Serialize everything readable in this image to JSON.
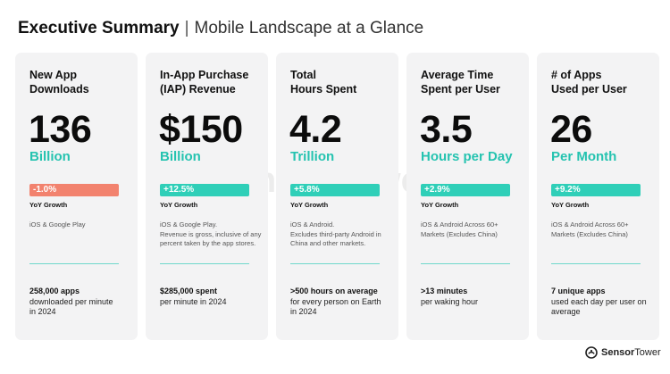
{
  "header": {
    "title_bold": "Executive Summary",
    "separator": "|",
    "title_light": "Mobile Landscape at a Glance"
  },
  "colors": {
    "accent_teal": "#25c3b0",
    "badge_up": "#2fcfb8",
    "badge_down": "#f2826e",
    "card_bg": "#f3f3f4"
  },
  "cards": [
    {
      "title_line1": "New App",
      "title_line2": "Downloads",
      "value": "136",
      "unit": "Billion",
      "growth": "-1.0%",
      "growth_direction": "down",
      "growth_label": "YoY Growth",
      "note_lines": [
        "iOS & Google Play"
      ],
      "footer_strong": "258,000 apps",
      "footer_rest": [
        "downloaded per minute",
        "in 2024"
      ]
    },
    {
      "title_line1": "In-App Purchase",
      "title_line2": "(IAP) Revenue",
      "value": "$150",
      "unit": "Billion",
      "growth": "+12.5%",
      "growth_direction": "up",
      "growth_label": "YoY Growth",
      "note_lines": [
        "iOS & Google Play.",
        "Revenue is gross, inclusive of any",
        "percent taken by the app stores."
      ],
      "footer_strong": "$285,000 spent",
      "footer_rest": [
        "per minute in 2024"
      ]
    },
    {
      "title_line1": "Total",
      "title_line2": "Hours Spent",
      "value": "4.2",
      "unit": "Trillion",
      "growth": "+5.8%",
      "growth_direction": "up",
      "growth_label": "YoY Growth",
      "note_lines": [
        "iOS & Android.",
        "Excludes third-party Android in",
        "China and other markets."
      ],
      "footer_strong": ">500 hours on average",
      "footer_rest": [
        "for every person on Earth",
        "in 2024"
      ]
    },
    {
      "title_line1": "Average Time",
      "title_line2": "Spent per User",
      "value": "3.5",
      "unit": "Hours per Day",
      "growth": "+2.9%",
      "growth_direction": "up",
      "growth_label": "YoY Growth",
      "note_lines": [
        "iOS & Android Across 60+",
        "Markets (Excludes China)"
      ],
      "footer_strong": ">13 minutes",
      "footer_rest": [
        "per waking hour"
      ]
    },
    {
      "title_line1": "# of Apps",
      "title_line2": "Used per User",
      "value": "26",
      "unit": "Per Month",
      "growth": "+9.2%",
      "growth_direction": "up",
      "growth_label": "YoY Growth",
      "note_lines": [
        "iOS & Android Across 60+",
        "Markets (Excludes China)"
      ],
      "footer_strong": "7 unique apps",
      "footer_rest": [
        "used each day per user on",
        "average"
      ]
    }
  ],
  "watermark": {
    "text": "SensorTower"
  },
  "brand": {
    "name_bold": "Sensor",
    "name_rest": "Tower",
    "icon": "sensor-tower-logo-icon"
  }
}
